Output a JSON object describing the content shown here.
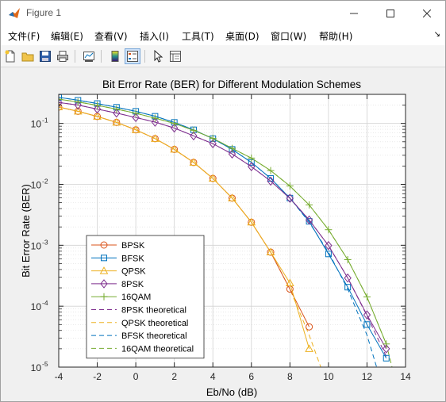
{
  "window": {
    "title": "Figure 1"
  },
  "menu": [
    "文件(F)",
    "编辑(E)",
    "查看(V)",
    "插入(I)",
    "工具(T)",
    "桌面(D)",
    "窗口(W)",
    "帮助(H)"
  ],
  "toolbar": [
    "new-figure",
    "open-file",
    "save",
    "print",
    "link-plot",
    "insert-colorbar",
    "insert-legend",
    "edit-plot",
    "property-inspector"
  ],
  "colors": {
    "bpsk": "#d95319",
    "bfsk": "#0072bd",
    "qpsk": "#edb120",
    "psk8": "#7e2f8e",
    "qam16": "#77ac30",
    "psk8_th": "#7e2f8e",
    "qpsk_th": "#edb120",
    "bfsk_th": "#0072bd",
    "qam16_th": "#77ac30"
  },
  "chart_data": {
    "type": "line",
    "title": "Bit Error Rate (BER) for Different Modulation Schemes",
    "xlabel": "Eb/No (dB)",
    "ylabel": "Bit Error Rate (BER)",
    "xlim": [
      -4,
      14
    ],
    "ylim": [
      1e-05,
      0.3
    ],
    "yscale": "log",
    "grid": true,
    "x_ticks": [
      "-4",
      "-2",
      "0",
      "2",
      "4",
      "6",
      "8",
      "10",
      "12",
      "14"
    ],
    "y_ticks": [
      {
        "base": "10",
        "exp": "-1"
      },
      {
        "base": "10",
        "exp": "-2"
      },
      {
        "base": "10",
        "exp": "-3"
      },
      {
        "base": "10",
        "exp": "-4"
      },
      {
        "base": "10",
        "exp": "-5"
      }
    ],
    "legend_position": "lower-left",
    "legend": [
      "BPSK",
      "BFSK",
      "QPSK",
      "8PSK",
      "16QAM",
      "8PSK theoretical",
      "QPSK theoretical",
      "BFSK theoretical",
      "16QAM theoretical"
    ],
    "series": [
      {
        "name": "BPSK",
        "marker": "circle",
        "style": "solid",
        "x": [
          -4,
          -3,
          -2,
          -1,
          0,
          1,
          2,
          3,
          4,
          5,
          6,
          7,
          8,
          9
        ],
        "y": [
          0.186,
          0.158,
          0.13,
          0.104,
          0.0786,
          0.0563,
          0.0375,
          0.0229,
          0.0125,
          0.00595,
          0.00239,
          0.00077,
          0.000191,
          4.58e-05
        ]
      },
      {
        "name": "BFSK",
        "marker": "square",
        "style": "solid",
        "x": [
          -4,
          -3,
          -2,
          -1,
          0,
          1,
          2,
          3,
          4,
          5,
          6,
          7,
          8,
          9,
          10,
          11,
          12,
          13
        ],
        "y": [
          0.268,
          0.24,
          0.212,
          0.184,
          0.158,
          0.131,
          0.104,
          0.0786,
          0.0563,
          0.0375,
          0.0229,
          0.0125,
          0.00595,
          0.00247,
          0.00072,
          0.000205,
          5e-05,
          1.4e-05
        ]
      },
      {
        "name": "QPSK",
        "marker": "triangle",
        "style": "solid",
        "x": [
          -4,
          -3,
          -2,
          -1,
          0,
          1,
          2,
          3,
          4,
          5,
          6,
          7,
          8,
          9
        ],
        "y": [
          0.186,
          0.158,
          0.13,
          0.104,
          0.0786,
          0.0563,
          0.0375,
          0.0229,
          0.0125,
          0.00595,
          0.00239,
          0.00077,
          0.00024,
          2e-05
        ]
      },
      {
        "name": "8PSK",
        "marker": "diamond",
        "style": "solid",
        "x": [
          -4,
          -3,
          -2,
          -1,
          0,
          1,
          2,
          3,
          4,
          5,
          6,
          7,
          8,
          9,
          10,
          11,
          12,
          13
        ],
        "y": [
          0.22,
          0.2,
          0.172,
          0.148,
          0.125,
          0.105,
          0.084,
          0.0625,
          0.0465,
          0.0315,
          0.0195,
          0.0113,
          0.0059,
          0.0026,
          0.00099,
          0.00029,
          7.2e-05,
          2e-05
        ]
      },
      {
        "name": "16QAM",
        "marker": "plus",
        "style": "solid",
        "x": [
          -4,
          -3,
          -2,
          -1,
          0,
          1,
          2,
          3,
          4,
          5,
          6,
          7,
          8,
          9,
          10,
          11,
          12,
          13
        ],
        "y": [
          0.25,
          0.225,
          0.198,
          0.172,
          0.147,
          0.122,
          0.1,
          0.077,
          0.057,
          0.039,
          0.027,
          0.0168,
          0.0094,
          0.0046,
          0.0018,
          0.00058,
          0.000142,
          2.4e-05
        ]
      },
      {
        "name": "8PSK theoretical",
        "style": "dashed",
        "x": [
          -4,
          -3,
          -2,
          -1,
          0,
          1,
          2,
          3,
          4,
          5,
          6,
          7,
          8,
          9,
          10,
          11,
          12,
          13
        ],
        "y": [
          0.22,
          0.2,
          0.172,
          0.148,
          0.125,
          0.105,
          0.084,
          0.0625,
          0.0465,
          0.0315,
          0.0195,
          0.0113,
          0.0059,
          0.0026,
          0.00099,
          0.00029,
          7e-05,
          1.5e-05
        ]
      },
      {
        "name": "QPSK theoretical",
        "style": "dashed",
        "x": [
          -4,
          -3,
          -2,
          -1,
          0,
          1,
          2,
          3,
          4,
          5,
          6,
          7,
          8,
          9,
          9.6
        ],
        "y": [
          0.186,
          0.158,
          0.13,
          0.104,
          0.0786,
          0.0563,
          0.0375,
          0.0229,
          0.0125,
          0.00595,
          0.00239,
          0.00077,
          0.000191,
          3.36e-05,
          1e-05
        ]
      },
      {
        "name": "BFSK theoretical",
        "style": "dashed",
        "x": [
          -4,
          -3,
          -2,
          -1,
          0,
          1,
          2,
          3,
          4,
          5,
          6,
          7,
          8,
          9,
          10,
          11,
          12,
          12.5
        ],
        "y": [
          0.268,
          0.24,
          0.212,
          0.184,
          0.158,
          0.131,
          0.104,
          0.0786,
          0.0563,
          0.0375,
          0.0229,
          0.0125,
          0.00595,
          0.00239,
          0.00077,
          0.000191,
          3.36e-05,
          1e-05
        ]
      },
      {
        "name": "16QAM theoretical",
        "style": "dashed",
        "x": [
          -4,
          -3,
          -2,
          -1,
          0,
          1,
          2,
          3,
          4,
          5,
          6,
          7,
          8,
          9,
          10,
          11,
          12,
          13,
          13.3
        ],
        "y": [
          0.25,
          0.225,
          0.198,
          0.172,
          0.147,
          0.122,
          0.1,
          0.077,
          0.057,
          0.039,
          0.027,
          0.0168,
          0.0094,
          0.0046,
          0.0018,
          0.00058,
          0.000142,
          2.4e-05,
          1e-05
        ]
      }
    ]
  }
}
